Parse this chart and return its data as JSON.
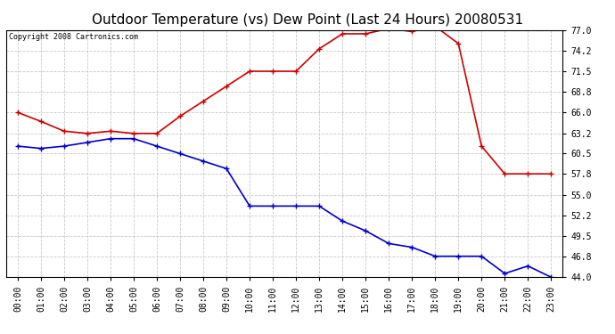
{
  "title": "Outdoor Temperature (vs) Dew Point (Last 24 Hours) 20080531",
  "copyright": "Copyright 2008 Cartronics.com",
  "hours": [
    "00:00",
    "01:00",
    "02:00",
    "03:00",
    "04:00",
    "05:00",
    "06:00",
    "07:00",
    "08:00",
    "09:00",
    "10:00",
    "11:00",
    "12:00",
    "13:00",
    "14:00",
    "15:00",
    "16:00",
    "17:00",
    "18:00",
    "19:00",
    "20:00",
    "21:00",
    "22:00",
    "23:00"
  ],
  "temp": [
    66.0,
    64.8,
    63.5,
    63.2,
    63.5,
    63.2,
    63.2,
    65.5,
    67.5,
    69.5,
    71.5,
    71.5,
    71.5,
    74.5,
    76.5,
    76.5,
    77.2,
    76.8,
    77.5,
    75.2,
    61.5,
    57.8,
    57.8,
    57.8
  ],
  "dew": [
    61.5,
    61.2,
    61.5,
    62.0,
    62.5,
    62.5,
    61.5,
    60.5,
    59.5,
    58.5,
    53.5,
    53.5,
    53.5,
    53.5,
    51.5,
    50.2,
    48.5,
    48.0,
    46.8,
    46.8,
    46.8,
    44.5,
    45.5,
    44.0
  ],
  "temp_color": "#cc0000",
  "dew_color": "#0000cc",
  "bg_color": "#ffffff",
  "plot_bg_color": "#ffffff",
  "grid_color": "#c8c8c8",
  "yticks": [
    44.0,
    46.8,
    49.5,
    52.2,
    55.0,
    57.8,
    60.5,
    63.2,
    66.0,
    68.8,
    71.5,
    74.2,
    77.0
  ],
  "ymin": 44.0,
  "ymax": 77.0,
  "title_fontsize": 11,
  "tick_fontsize": 7,
  "copyright_fontsize": 6,
  "marker": "+",
  "markersize": 5,
  "linewidth": 1.2
}
